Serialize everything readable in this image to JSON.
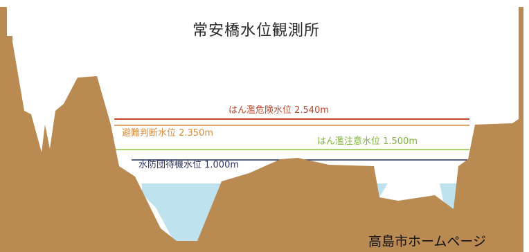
{
  "title": "常安橋水位観測所",
  "levels": [
    {
      "label": "はん濫危険水位 2.540m",
      "color": "#c0462c",
      "value_m": 2.54
    },
    {
      "label": "避難判断水位 2.350m",
      "color": "#d98a3a",
      "value_m": 2.35
    },
    {
      "label": "はん濫注意水位 1.500m",
      "color": "#8cc63f",
      "value_m": 1.5
    },
    {
      "label": "水防団待機水位 1.000m",
      "color": "#1f2a52",
      "value_m": 1.0
    }
  ],
  "footer": "高島市ホームページ",
  "colors": {
    "ground": "#b98a52",
    "water": "#bfe3ee",
    "background": "#ffffff"
  }
}
